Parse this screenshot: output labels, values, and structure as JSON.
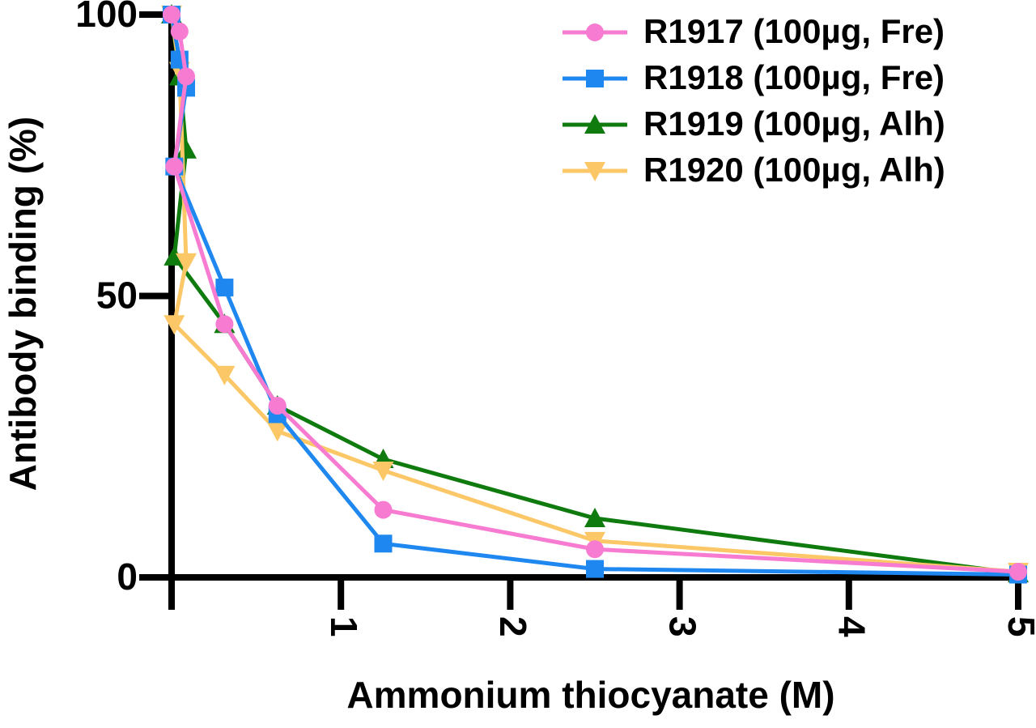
{
  "chart_data": {
    "type": "line",
    "x_label": "Ammonium thiocyanate (M)",
    "y_label": "Antibody binding (%)",
    "x": [
      0,
      0.047,
      0.086,
      0.016,
      0.3125,
      0.625,
      1.25,
      2.5,
      5
    ],
    "series": [
      {
        "name": "R1917 (100µg, Fre)",
        "color": "#f77bd0",
        "marker": "circle",
        "values": [
          100,
          97,
          89,
          73,
          45,
          30.5,
          12,
          5,
          1
        ]
      },
      {
        "name": "R1918 (100µg, Fre)",
        "color": "#1f87f0",
        "marker": "square",
        "values": [
          100,
          92,
          87,
          73,
          51.5,
          29,
          6,
          1.5,
          0.5
        ]
      },
      {
        "name": "R1919 (100µg, Alh)",
        "color": "#0f7b0f",
        "marker": "triangle",
        "values": [
          100,
          89,
          76,
          57,
          45,
          30.5,
          21,
          10.5,
          0.7
        ]
      },
      {
        "name": "R1920 (100µg, Alh)",
        "color": "#fcc766",
        "marker": "triangle-down",
        "values": [
          100,
          90,
          56,
          45,
          36,
          26,
          19,
          6.5,
          1
        ]
      }
    ],
    "xlim": [
      0,
      5
    ],
    "xticks": [
      1,
      2,
      3,
      4,
      5
    ],
    "ylim": [
      0,
      100
    ],
    "yticks": [
      0,
      50,
      100
    ],
    "legend": "top-right"
  }
}
